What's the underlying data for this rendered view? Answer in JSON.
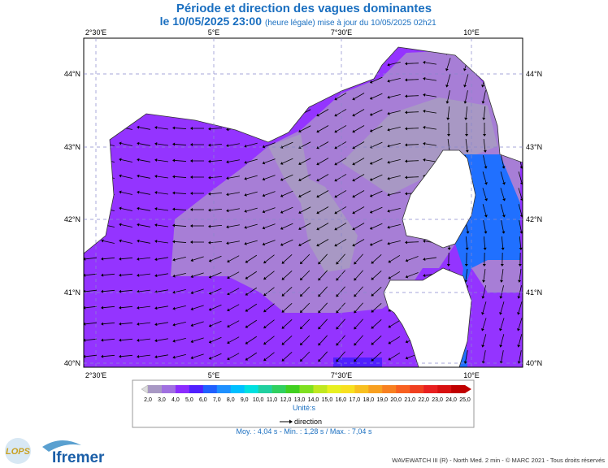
{
  "header": {
    "title": "Période et direction des vagues dominantes",
    "date": "le 10/05/2025 23:00",
    "note": "(heure légale) mise à jour du 10/05/2025 02h21"
  },
  "map": {
    "lon_labels": [
      "2°30'E",
      "5°E",
      "7°30'E",
      "10°E"
    ],
    "lat_labels": [
      "44°N",
      "43°N",
      "42°N",
      "41°N",
      "40°N"
    ]
  },
  "legend": {
    "labels": [
      "2,0",
      "3,0",
      "4,0",
      "5,0",
      "6,0",
      "7,0",
      "8,0",
      "9,0",
      "10,0",
      "11,0",
      "12,0",
      "13,0",
      "14,0",
      "15,0",
      "16,0",
      "17,0",
      "18,0",
      "19,0",
      "20,0",
      "21,0",
      "22,0",
      "23,0",
      "24,0",
      "25,0"
    ],
    "colors": [
      "#a898c4",
      "#a070e0",
      "#8c2cff",
      "#5020ff",
      "#2060ff",
      "#1e90ff",
      "#00bfff",
      "#00e0e0",
      "#20d0a0",
      "#30d060",
      "#40d020",
      "#80e020",
      "#c0e820",
      "#e8f020",
      "#f8e020",
      "#f8c020",
      "#f8a020",
      "#f88020",
      "#f86020",
      "#f04020",
      "#e82020",
      "#d81010",
      "#c00000"
    ],
    "unit": "Unité:s",
    "direction": "direction"
  },
  "stats": "Moy. : 4,04 s   -   Min. : 1,28 s / Max. : 7,04 s",
  "logos": {
    "lops": "LOPS",
    "ifremer": "Ifremer"
  },
  "footer": "WAVEWATCH III (R) - North Med. 2 min - © MARC 2021 - Tous droits réservés"
}
